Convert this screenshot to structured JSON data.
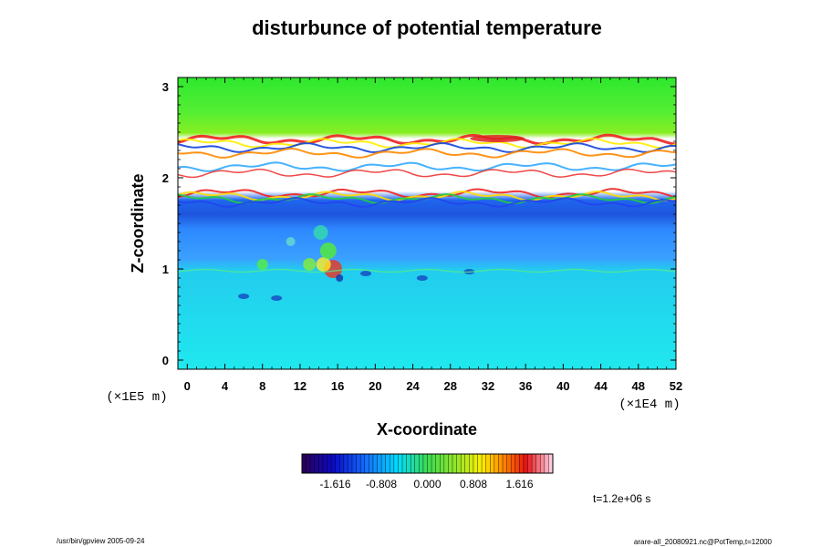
{
  "chart_data": {
    "type": "heatmap",
    "title": "disturbunce of potential temperature",
    "xlabel": "X-coordinate",
    "ylabel": "Z-coordinate",
    "x_unit": "(×1E4 m)",
    "y_unit": "(×1E5 m)",
    "xlim": [
      -1,
      52
    ],
    "ylim": [
      -0.1,
      3.1
    ],
    "x_ticks": [
      0,
      4,
      8,
      12,
      16,
      20,
      24,
      28,
      32,
      36,
      40,
      44,
      48,
      52
    ],
    "y_ticks": [
      0,
      1,
      2,
      3
    ],
    "colorbar": {
      "ticks": [
        "-1.616",
        "-0.808",
        "0.000",
        "0.808",
        "1.616"
      ],
      "tick_values": [
        -1.616,
        -0.808,
        0.0,
        0.808,
        1.616
      ],
      "range": [
        -2.2,
        2.2
      ],
      "colormap": "rainbow"
    },
    "layers": [
      {
        "z_range": [
          2.6,
          3.1
        ],
        "value": 0.5,
        "description_color": "#33ee33"
      },
      {
        "z_range": [
          2.3,
          2.6
        ],
        "value": 0.8,
        "description_color": "#66ee22"
      },
      {
        "z_range": [
          1.75,
          2.3
        ],
        "value": null,
        "description_color": "#ffffff"
      },
      {
        "z_range": [
          1.55,
          1.75
        ],
        "value": -1.4,
        "description_color": "#2255ee"
      },
      {
        "z_range": [
          1.0,
          1.55
        ],
        "value": -0.9,
        "description_color": "#3399ff"
      },
      {
        "z_range": [
          -0.1,
          1.0
        ],
        "value": -0.4,
        "description_color": "#22ddee"
      }
    ],
    "grid": false,
    "time_label": "t=1.2e+06 s"
  },
  "footer": {
    "left": "/usr/bin/gpview 2005-09-24",
    "right": "arare-all_20080921.nc@PotTemp,t=12000"
  }
}
